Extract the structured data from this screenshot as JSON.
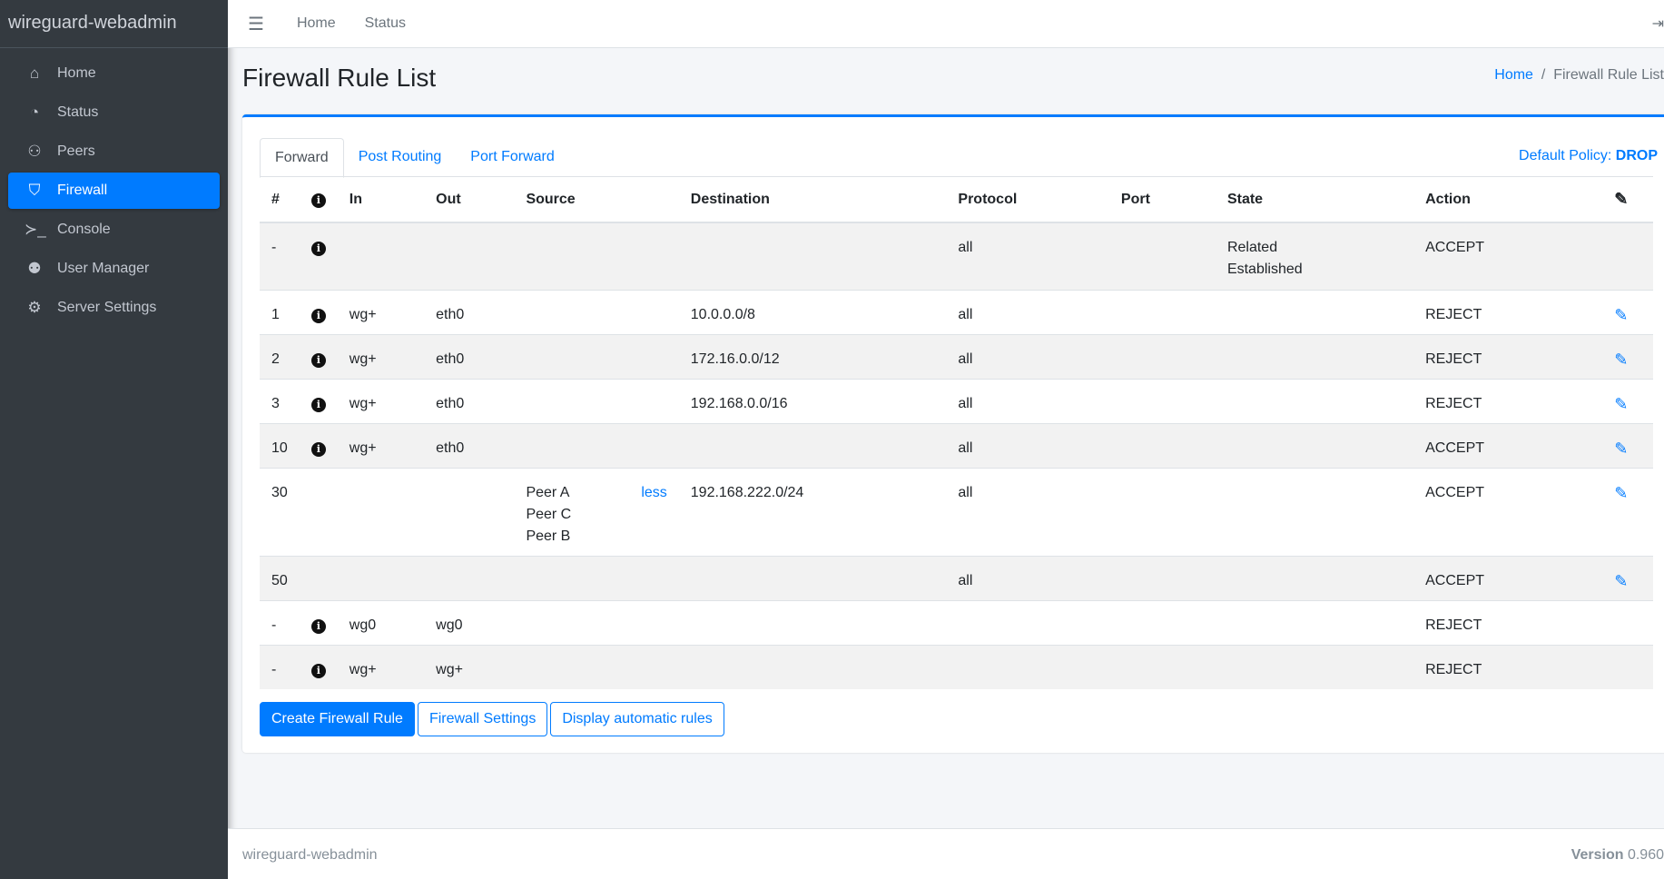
{
  "app": {
    "title": "wireguard-webadmin"
  },
  "sidebar": {
    "items": [
      {
        "label": "Home",
        "icon": "home-icon",
        "glyph": "⌂"
      },
      {
        "label": "Status",
        "icon": "gauge-icon",
        "glyph": "◔"
      },
      {
        "label": "Peers",
        "icon": "users-cog-icon",
        "glyph": "⚇"
      },
      {
        "label": "Firewall",
        "icon": "shield-icon",
        "glyph": "⛉",
        "active": true
      },
      {
        "label": "Console",
        "icon": "terminal-icon",
        "glyph": "≻_"
      },
      {
        "label": "User Manager",
        "icon": "users-icon",
        "glyph": "⚉"
      },
      {
        "label": "Server Settings",
        "icon": "cogs-icon",
        "glyph": "⚙"
      }
    ]
  },
  "topbar": {
    "links": [
      "Home",
      "Status"
    ]
  },
  "page": {
    "title": "Firewall Rule List",
    "breadcrumb": {
      "home": "Home",
      "current": "Firewall Rule List"
    }
  },
  "tabs": [
    "Forward",
    "Post Routing",
    "Port Forward"
  ],
  "policy": {
    "label": "Default Policy:",
    "value": "DROP"
  },
  "table": {
    "headers": [
      "#",
      "",
      "In",
      "Out",
      "Source",
      "Destination",
      "Protocol",
      "Port",
      "State",
      "Action",
      ""
    ],
    "rows": [
      {
        "num": "-",
        "info": true,
        "in": "",
        "out": "",
        "source": [],
        "less": "",
        "dest": "",
        "proto": "all",
        "port": "",
        "state": [
          "Related",
          "Established"
        ],
        "action": "ACCEPT",
        "edit": false
      },
      {
        "num": "1",
        "info": true,
        "in": "wg+",
        "out": "eth0",
        "source": [],
        "less": "",
        "dest": "10.0.0.0/8",
        "proto": "all",
        "port": "",
        "state": [],
        "action": "REJECT",
        "edit": true
      },
      {
        "num": "2",
        "info": true,
        "in": "wg+",
        "out": "eth0",
        "source": [],
        "less": "",
        "dest": "172.16.0.0/12",
        "proto": "all",
        "port": "",
        "state": [],
        "action": "REJECT",
        "edit": true
      },
      {
        "num": "3",
        "info": true,
        "in": "wg+",
        "out": "eth0",
        "source": [],
        "less": "",
        "dest": "192.168.0.0/16",
        "proto": "all",
        "port": "",
        "state": [],
        "action": "REJECT",
        "edit": true
      },
      {
        "num": "10",
        "info": true,
        "in": "wg+",
        "out": "eth0",
        "source": [],
        "less": "",
        "dest": "",
        "proto": "all",
        "port": "",
        "state": [],
        "action": "ACCEPT",
        "edit": true
      },
      {
        "num": "30",
        "info": false,
        "in": "",
        "out": "",
        "source": [
          "Peer A",
          "Peer C",
          "Peer B"
        ],
        "less": "less",
        "dest": "192.168.222.0/24",
        "proto": "all",
        "port": "",
        "state": [],
        "action": "ACCEPT",
        "edit": true
      },
      {
        "num": "50",
        "info": false,
        "in": "",
        "out": "",
        "source": [],
        "less": "",
        "dest": "",
        "proto": "all",
        "port": "",
        "state": [],
        "action": "ACCEPT",
        "edit": true
      },
      {
        "num": "-",
        "info": true,
        "in": "wg0",
        "out": "wg0",
        "source": [],
        "less": "",
        "dest": "",
        "proto": "",
        "port": "",
        "state": [],
        "action": "REJECT",
        "edit": false
      },
      {
        "num": "-",
        "info": true,
        "in": "wg+",
        "out": "wg+",
        "source": [],
        "less": "",
        "dest": "",
        "proto": "",
        "port": "",
        "state": [],
        "action": "REJECT",
        "edit": false
      }
    ]
  },
  "buttons": {
    "create": "Create Firewall Rule",
    "settings": "Firewall Settings",
    "auto": "Display automatic rules"
  },
  "footer": {
    "left": "wireguard-webadmin",
    "version_label": "Version",
    "version": "0.960"
  },
  "colors": {
    "accent": "#007bff",
    "sidebar": "#343a40"
  }
}
